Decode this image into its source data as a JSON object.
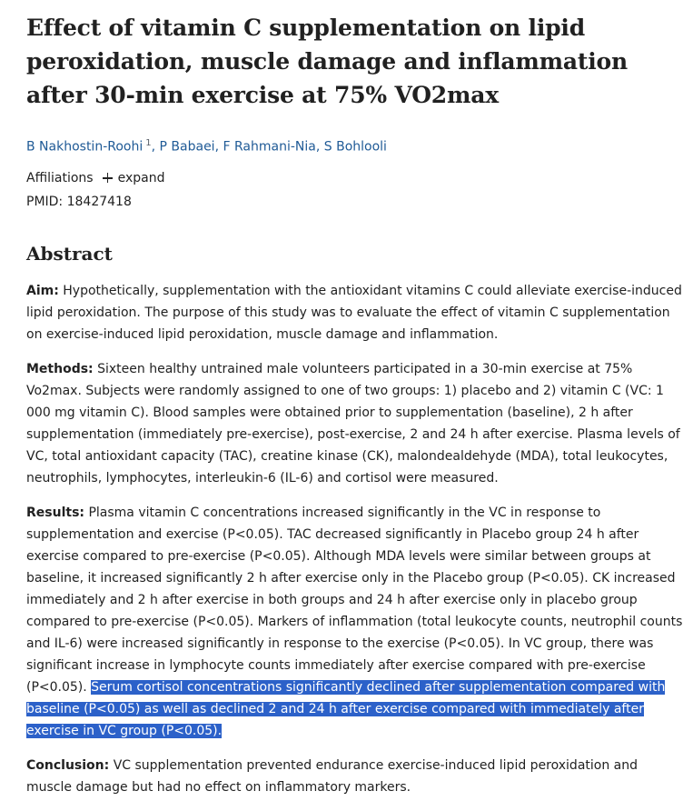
{
  "article": {
    "title": "Effect of vitamin C supplementation on lipid peroxidation, muscle damage and inflammation after 30-min exercise at 75% VO2max",
    "authors": [
      {
        "name": "B Nakhostin-Roohi",
        "sup": "1"
      },
      {
        "name": "P Babaei"
      },
      {
        "name": "F Rahmani-Nia"
      },
      {
        "name": "S Bohlooli"
      }
    ],
    "affiliations_label": "Affiliations",
    "expand_label": "expand",
    "pmid": "PMID: 18427418"
  },
  "abstract": {
    "heading": "Abstract",
    "aim": {
      "label": "Aim:",
      "text": "Hypothetically, supplementation with the antioxidant vitamins C could alleviate exercise-induced lipid peroxidation. The purpose of this study was to evaluate the effect of vitamin C supplementation on exercise-induced lipid peroxidation, muscle damage and inflammation."
    },
    "methods": {
      "label": "Methods:",
      "text": "Sixteen healthy untrained male volunteers participated in a 30-min exercise at 75% Vo2max. Subjects were randomly assigned to one of two groups: 1) placebo and 2) vitamin C (VC: 1 000 mg vitamin C). Blood samples were obtained prior to supplementation (baseline), 2 h after supplementation (immediately pre-exercise), post-exercise, 2 and 24 h after exercise. Plasma levels of VC, total antioxidant capacity (TAC), creatine kinase (CK), malondealdehyde (MDA), total leukocytes, neutrophils, lymphocytes, interleukin-6 (IL-6) and cortisol were measured."
    },
    "results": {
      "label": "Results:",
      "text": "Plasma vitamin C concentrations increased significantly in the VC in response to supplementation and exercise (P<0.05). TAC decreased significantly in Placebo group 24 h after exercise compared to pre-exercise (P<0.05). Although MDA levels were similar between groups at baseline, it increased significantly 2 h after exercise only in the Placebo group (P<0.05). CK increased immediately and 2 h after exercise in both groups and 24 h after exercise only in placebo group compared to pre-exercise (P<0.05). Markers of inflammation (total leukocyte counts, neutrophil counts and IL-6) were increased significantly in response to the exercise (P<0.05). In VC group, there was significant increase in lymphocyte counts immediately after exercise compared with pre-exercise (P<0.05). ",
      "highlighted_text": "Serum cortisol concentrations significantly declined after supplementation compared with baseline (P<0.05) as well as declined 2 and 24 h after exercise compared with immediately after exercise in VC group (P<0.05)."
    },
    "conclusion": {
      "label": "Conclusion:",
      "text": "VC supplementation prevented endurance exercise-induced lipid peroxidation and muscle damage but had no effect on inflammatory markers."
    }
  },
  "colors": {
    "link": "#1f5a96",
    "highlight": "#2c61c9",
    "text": "#212121"
  }
}
